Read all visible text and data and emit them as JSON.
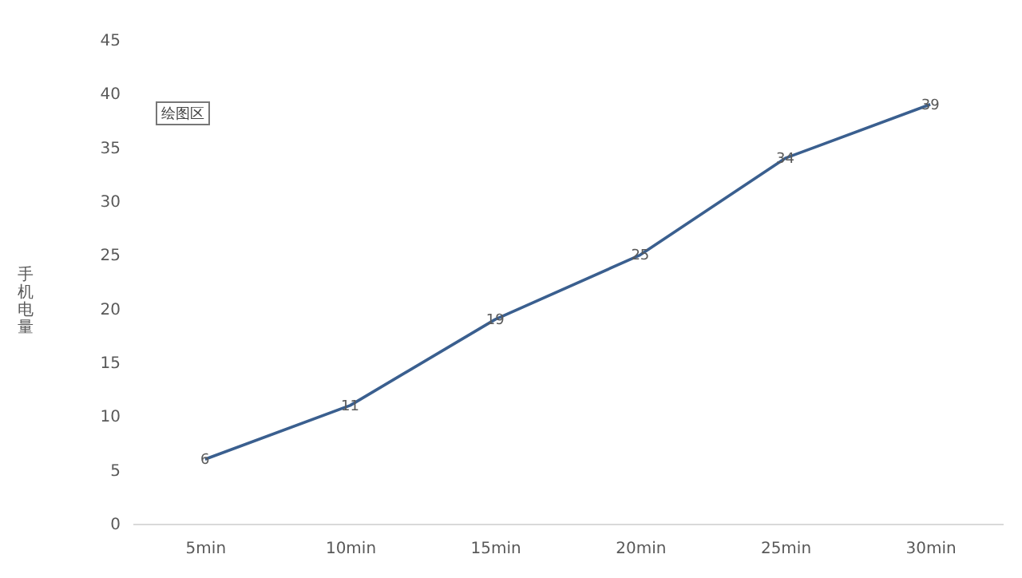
{
  "chart_data": {
    "type": "line",
    "categories": [
      "5min",
      "10min",
      "15min",
      "20min",
      "25min",
      "30min"
    ],
    "series": [
      {
        "color": "#3a5f8f",
        "values": [
          6,
          11,
          19,
          25,
          34,
          39
        ]
      }
    ],
    "ylabel": "手机电量",
    "ylim": [
      0,
      45
    ],
    "yticks": [
      0,
      5,
      10,
      15,
      20,
      25,
      30,
      35,
      40,
      45
    ],
    "data_labels": true,
    "grid": false,
    "marker": "none",
    "annotations": [
      "绘图区"
    ]
  }
}
